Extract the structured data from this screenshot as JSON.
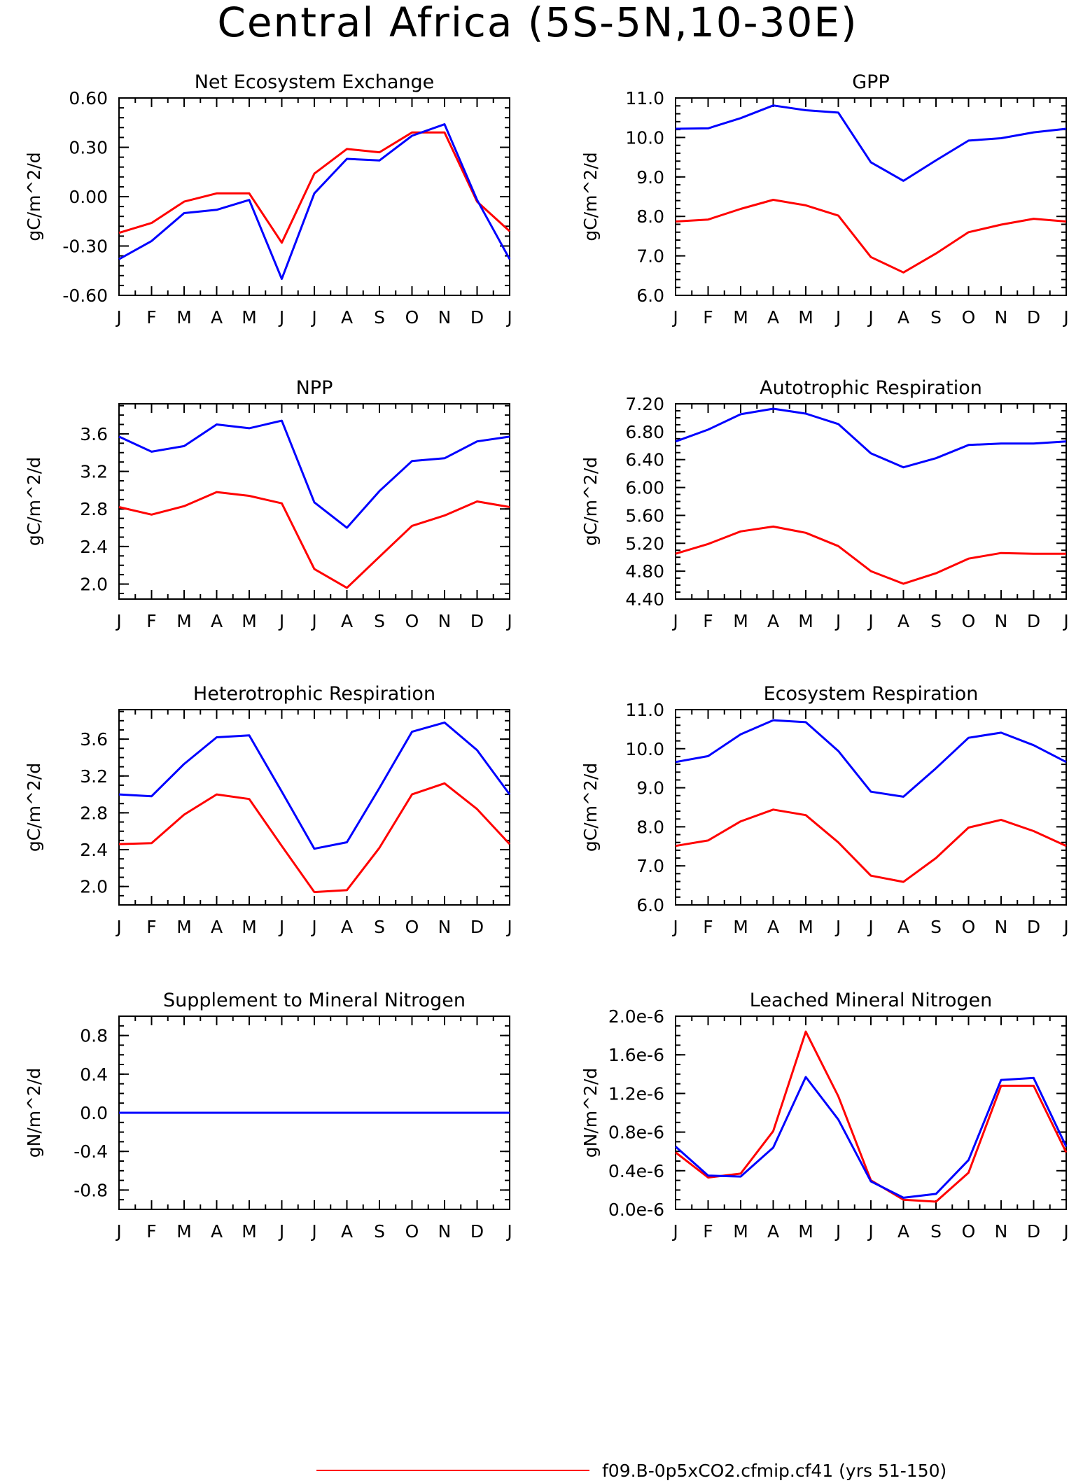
{
  "figure": {
    "title": "Central Africa (5S-5N,10-30E)",
    "series_colors": [
      "#ff0000",
      "#0000ff"
    ],
    "legend": [
      {
        "label": "f09.B-0p5xCO2.cfmip.cf41 (yrs 51-150)",
        "color": "#ff0000"
      }
    ]
  },
  "chart_data": [
    {
      "type": "line",
      "title": "Net Ecosystem Exchange",
      "ylabel": "gC/m^2/d",
      "xticks": [
        "J",
        "F",
        "M",
        "A",
        "M",
        "J",
        "J",
        "A",
        "S",
        "O",
        "N",
        "D",
        "J"
      ],
      "ylim": [
        -0.6,
        0.6
      ],
      "yticks": [
        -0.6,
        -0.3,
        0.0,
        0.3,
        0.6
      ],
      "ytick_labels": [
        "-0.60",
        "-0.30",
        "0.00",
        "0.30",
        "0.60"
      ],
      "minor_per_major": 5,
      "series": [
        {
          "color": "#ff0000",
          "values": [
            -0.22,
            -0.16,
            -0.03,
            0.02,
            0.02,
            -0.28,
            0.14,
            0.29,
            0.27,
            0.39,
            0.39,
            -0.03,
            -0.21
          ]
        },
        {
          "color": "#0000ff",
          "values": [
            -0.38,
            -0.27,
            -0.1,
            -0.08,
            -0.02,
            -0.5,
            0.02,
            0.23,
            0.22,
            0.37,
            0.44,
            -0.02,
            -0.38
          ]
        }
      ]
    },
    {
      "type": "line",
      "title": "GPP",
      "ylabel": "gC/m^2/d",
      "xticks": [
        "J",
        "F",
        "M",
        "A",
        "M",
        "J",
        "J",
        "A",
        "S",
        "O",
        "N",
        "D",
        "J"
      ],
      "ylim": [
        6.0,
        11.0
      ],
      "yticks": [
        6.0,
        7.0,
        8.0,
        9.0,
        10.0,
        11.0
      ],
      "ytick_labels": [
        "6.0",
        "7.0",
        "8.0",
        "9.0",
        "10.0",
        "11.0"
      ],
      "minor_per_major": 5,
      "series": [
        {
          "color": "#ff0000",
          "values": [
            7.87,
            7.92,
            8.19,
            8.42,
            8.28,
            8.02,
            6.97,
            6.58,
            7.06,
            7.6,
            7.79,
            7.94,
            7.87
          ]
        },
        {
          "color": "#0000ff",
          "values": [
            10.22,
            10.23,
            10.49,
            10.81,
            10.69,
            10.63,
            9.37,
            8.9,
            9.42,
            9.92,
            9.98,
            10.13,
            10.22
          ]
        }
      ]
    },
    {
      "type": "line",
      "title": "NPP",
      "ylabel": "gC/m^2/d",
      "xticks": [
        "J",
        "F",
        "M",
        "A",
        "M",
        "J",
        "J",
        "A",
        "S",
        "O",
        "N",
        "D",
        "J"
      ],
      "ylim": [
        1.84,
        3.92
      ],
      "yticks": [
        2.0,
        2.4,
        2.8,
        3.2,
        3.6
      ],
      "ytick_labels": [
        "2.0",
        "2.4",
        "2.8",
        "3.2",
        "3.6"
      ],
      "minor_per_major": 4,
      "series": [
        {
          "color": "#ff0000",
          "values": [
            2.82,
            2.74,
            2.83,
            2.98,
            2.94,
            2.86,
            2.16,
            1.96,
            2.29,
            2.62,
            2.73,
            2.88,
            2.82
          ]
        },
        {
          "color": "#0000ff",
          "values": [
            3.57,
            3.41,
            3.47,
            3.7,
            3.66,
            3.74,
            2.87,
            2.6,
            2.99,
            3.31,
            3.34,
            3.52,
            3.57
          ]
        }
      ]
    },
    {
      "type": "line",
      "title": "Autotrophic Respiration",
      "ylabel": "gC/m^2/d",
      "xticks": [
        "J",
        "F",
        "M",
        "A",
        "M",
        "J",
        "J",
        "A",
        "S",
        "O",
        "N",
        "D",
        "J"
      ],
      "ylim": [
        4.4,
        7.2
      ],
      "yticks": [
        4.4,
        4.8,
        5.2,
        5.6,
        6.0,
        6.4,
        6.8,
        7.2
      ],
      "ytick_labels": [
        "4.40",
        "4.80",
        "5.20",
        "5.60",
        "6.00",
        "6.40",
        "6.80",
        "7.20"
      ],
      "minor_per_major": 4,
      "series": [
        {
          "color": "#ff0000",
          "values": [
            5.05,
            5.19,
            5.37,
            5.44,
            5.35,
            5.16,
            4.8,
            4.62,
            4.77,
            4.98,
            5.06,
            5.05,
            5.05
          ]
        },
        {
          "color": "#0000ff",
          "values": [
            6.66,
            6.83,
            7.05,
            7.13,
            7.06,
            6.91,
            6.49,
            6.29,
            6.42,
            6.61,
            6.63,
            6.63,
            6.66
          ]
        }
      ]
    },
    {
      "type": "line",
      "title": "Heterotrophic Respiration",
      "ylabel": "gC/m^2/d",
      "xticks": [
        "J",
        "F",
        "M",
        "A",
        "M",
        "J",
        "J",
        "A",
        "S",
        "O",
        "N",
        "D",
        "J"
      ],
      "ylim": [
        1.8,
        3.92
      ],
      "yticks": [
        2.0,
        2.4,
        2.8,
        3.2,
        3.6
      ],
      "ytick_labels": [
        "2.0",
        "2.4",
        "2.8",
        "3.2",
        "3.6"
      ],
      "minor_per_major": 4,
      "series": [
        {
          "color": "#ff0000",
          "values": [
            2.46,
            2.47,
            2.78,
            3.0,
            2.95,
            2.44,
            1.94,
            1.96,
            2.42,
            3.0,
            3.12,
            2.84,
            2.46
          ]
        },
        {
          "color": "#0000ff",
          "values": [
            3.0,
            2.98,
            3.33,
            3.62,
            3.64,
            3.03,
            2.41,
            2.48,
            3.07,
            3.68,
            3.78,
            3.48,
            3.0
          ]
        }
      ]
    },
    {
      "type": "line",
      "title": "Ecosystem Respiration",
      "ylabel": "gC/m^2/d",
      "xticks": [
        "J",
        "F",
        "M",
        "A",
        "M",
        "J",
        "J",
        "A",
        "S",
        "O",
        "N",
        "D",
        "J"
      ],
      "ylim": [
        6.0,
        11.0
      ],
      "yticks": [
        6.0,
        7.0,
        8.0,
        9.0,
        10.0,
        11.0
      ],
      "ytick_labels": [
        "6.0",
        "7.0",
        "8.0",
        "9.0",
        "10.0",
        "11.0"
      ],
      "minor_per_major": 5,
      "series": [
        {
          "color": "#ff0000",
          "values": [
            7.51,
            7.65,
            8.14,
            8.44,
            8.3,
            7.6,
            6.75,
            6.59,
            7.2,
            7.98,
            8.18,
            7.89,
            7.51
          ]
        },
        {
          "color": "#0000ff",
          "values": [
            9.66,
            9.81,
            10.37,
            10.73,
            10.68,
            9.94,
            8.9,
            8.77,
            9.5,
            10.28,
            10.41,
            10.09,
            9.66
          ]
        }
      ]
    },
    {
      "type": "line",
      "title": "Supplement to Mineral Nitrogen",
      "ylabel": "gN/m^2/d",
      "xticks": [
        "J",
        "F",
        "M",
        "A",
        "M",
        "J",
        "J",
        "A",
        "S",
        "O",
        "N",
        "D",
        "J"
      ],
      "ylim": [
        -1.0,
        1.0
      ],
      "yticks": [
        -0.8,
        -0.4,
        0.0,
        0.4,
        0.8
      ],
      "ytick_labels": [
        "-0.8",
        "-0.4",
        "0.0",
        "0.4",
        "0.8"
      ],
      "minor_per_major": 4,
      "series": [
        {
          "color": "#ff0000",
          "values": [
            0,
            0,
            0,
            0,
            0,
            0,
            0,
            0,
            0,
            0,
            0,
            0,
            0
          ]
        },
        {
          "color": "#0000ff",
          "values": [
            0,
            0,
            0,
            0,
            0,
            0,
            0,
            0,
            0,
            0,
            0,
            0,
            0
          ]
        }
      ]
    },
    {
      "type": "line",
      "title": "Leached Mineral Nitrogen",
      "ylabel": "gN/m^2/d",
      "xticks": [
        "J",
        "F",
        "M",
        "A",
        "M",
        "J",
        "J",
        "A",
        "S",
        "O",
        "N",
        "D",
        "J"
      ],
      "ylim": [
        0.0,
        2e-06
      ],
      "yticks": [
        0.0,
        4e-07,
        8e-07,
        1.2e-06,
        1.6e-06,
        2e-06
      ],
      "ytick_labels": [
        "0.0e-6",
        "0.4e-6",
        "0.8e-6",
        "1.2e-6",
        "1.6e-6",
        "2.0e-6"
      ],
      "minor_per_major": 4,
      "series": [
        {
          "color": "#ff0000",
          "values": [
            5.9e-07,
            3.3e-07,
            3.7e-07,
            8.1e-07,
            1.84e-06,
            1.17e-06,
            3e-07,
            1e-07,
            8e-08,
            3.8e-07,
            1.28e-06,
            1.28e-06,
            5.9e-07
          ]
        },
        {
          "color": "#0000ff",
          "values": [
            6.5e-07,
            3.5e-07,
            3.4e-07,
            6.4e-07,
            1.37e-06,
            9.3e-07,
            2.9e-07,
            1.2e-07,
            1.6e-07,
            5.1e-07,
            1.34e-06,
            1.36e-06,
            6.5e-07
          ]
        }
      ]
    }
  ]
}
